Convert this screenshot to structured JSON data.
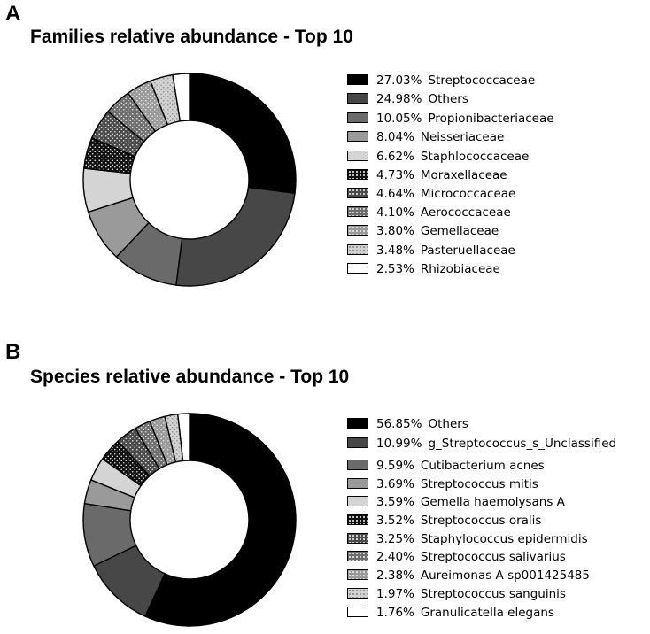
{
  "panels": [
    {
      "letter": "A",
      "chart_data": {
        "type": "pie",
        "donut": true,
        "title": "Families relative abundance - Top 10",
        "series": [
          {
            "label": "Streptococcaceae",
            "pct": "27.03%",
            "value": 27.03,
            "fill": "#000000",
            "pattern": "none"
          },
          {
            "label": "Others",
            "pct": "24.98%",
            "value": 24.98,
            "fill": "#474747",
            "pattern": "none"
          },
          {
            "label": "Propionibacteriaceae",
            "pct": "10.05%",
            "value": 10.05,
            "fill": "#6a6a6a",
            "pattern": "none"
          },
          {
            "label": "Neisseriaceae",
            "pct": "8.04%",
            "value": 8.04,
            "fill": "#9a9a9a",
            "pattern": "none"
          },
          {
            "label": "Staphlococcaceae",
            "pct": "6.62%",
            "value": 6.62,
            "fill": "#d4d4d4",
            "pattern": "none"
          },
          {
            "label": "Moraxellaceae",
            "pct": "4.73%",
            "value": 4.73,
            "fill": "#111111",
            "pattern": "dots-light"
          },
          {
            "label": "Micrococcaceae",
            "pct": "4.64%",
            "value": 4.64,
            "fill": "#4a4a4a",
            "pattern": "dots-light"
          },
          {
            "label": "Aerococcaceae",
            "pct": "4.10%",
            "value": 4.1,
            "fill": "#6e6e6e",
            "pattern": "dots-light"
          },
          {
            "label": "Gemellaceae",
            "pct": "3.80%",
            "value": 3.8,
            "fill": "#999999",
            "pattern": "dots-light"
          },
          {
            "label": "Pasteruellaceae",
            "pct": "3.48%",
            "value": 3.48,
            "fill": "#d2d2d2",
            "pattern": "dots-dark"
          },
          {
            "label": "Rhizobiaceae",
            "pct": "2.53%",
            "value": 2.53,
            "fill": "#ffffff",
            "pattern": "none"
          }
        ]
      }
    },
    {
      "letter": "B",
      "chart_data": {
        "type": "pie",
        "donut": true,
        "title": "Species relative abundance - Top 10",
        "series": [
          {
            "label": "Others",
            "pct": "56.85%",
            "value": 56.85,
            "fill": "#000000",
            "pattern": "none"
          },
          {
            "label": "g_Streptococcus_s_Unclassified",
            "pct": "10.99%",
            "value": 10.99,
            "fill": "#474747",
            "pattern": "none"
          },
          {
            "label": "Cutibacterium acnes",
            "pct": "9.59%",
            "value": 9.59,
            "fill": "#6a6a6a",
            "pattern": "none"
          },
          {
            "label": "Streptococcus mitis",
            "pct": "3.69%",
            "value": 3.69,
            "fill": "#9a9a9a",
            "pattern": "none"
          },
          {
            "label": "Gemella haemolysans A",
            "pct": "3.59%",
            "value": 3.59,
            "fill": "#d4d4d4",
            "pattern": "none"
          },
          {
            "label": "Streptococcus oralis",
            "pct": "3.52%",
            "value": 3.52,
            "fill": "#111111",
            "pattern": "dots-light"
          },
          {
            "label": "Staphylococcus epidermidis",
            "pct": "3.25%",
            "value": 3.25,
            "fill": "#4a4a4a",
            "pattern": "dots-light"
          },
          {
            "label": "Streptococcus salivarius",
            "pct": "2.40%",
            "value": 2.4,
            "fill": "#6e6e6e",
            "pattern": "dots-light"
          },
          {
            "label": "Aureimonas A sp001425485",
            "pct": "2.38%",
            "value": 2.38,
            "fill": "#999999",
            "pattern": "dots-light"
          },
          {
            "label": "Streptococcus sanguinis",
            "pct": "1.97%",
            "value": 1.97,
            "fill": "#d2d2d2",
            "pattern": "dots-dark"
          },
          {
            "label": "Granulicatella elegans",
            "pct": "1.76%",
            "value": 1.76,
            "fill": "#ffffff",
            "pattern": "none"
          }
        ]
      }
    }
  ]
}
